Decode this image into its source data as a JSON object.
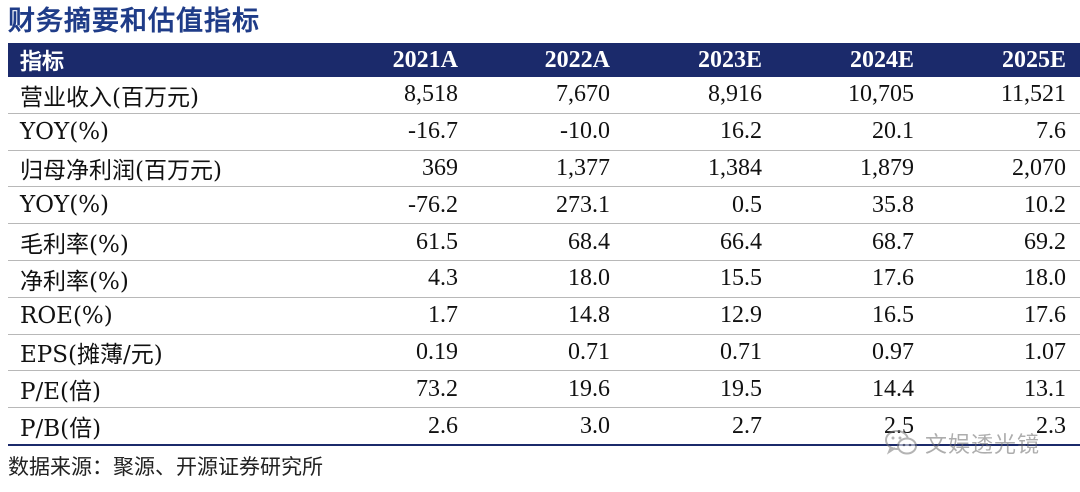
{
  "title": "财务摘要和估值指标",
  "table": {
    "headers": [
      "指标",
      "2021A",
      "2022A",
      "2023E",
      "2024E",
      "2025E"
    ],
    "rows": [
      [
        "营业收入(百万元)",
        "8,518",
        "7,670",
        "8,916",
        "10,705",
        "11,521"
      ],
      [
        "YOY(%)",
        "-16.7",
        "-10.0",
        "16.2",
        "20.1",
        "7.6"
      ],
      [
        "归母净利润(百万元)",
        "369",
        "1,377",
        "1,384",
        "1,879",
        "2,070"
      ],
      [
        "YOY(%)",
        "-76.2",
        "273.1",
        "0.5",
        "35.8",
        "10.2"
      ],
      [
        "毛利率(%)",
        "61.5",
        "68.4",
        "66.4",
        "68.7",
        "69.2"
      ],
      [
        "净利率(%)",
        "4.3",
        "18.0",
        "15.5",
        "17.6",
        "18.0"
      ],
      [
        "ROE(%)",
        "1.7",
        "14.8",
        "12.9",
        "16.5",
        "17.6"
      ],
      [
        "EPS(摊薄/元)",
        "0.19",
        "0.71",
        "0.71",
        "0.97",
        "1.07"
      ],
      [
        "P/E(倍)",
        "73.2",
        "19.6",
        "19.5",
        "14.4",
        "13.1"
      ],
      [
        "P/B(倍)",
        "2.6",
        "3.0",
        "2.7",
        "2.5",
        "2.3"
      ]
    ]
  },
  "source": "数据来源：聚源、开源证券研究所",
  "watermark": {
    "text": "文娱透光镜",
    "icon": "wechat-icon"
  }
}
